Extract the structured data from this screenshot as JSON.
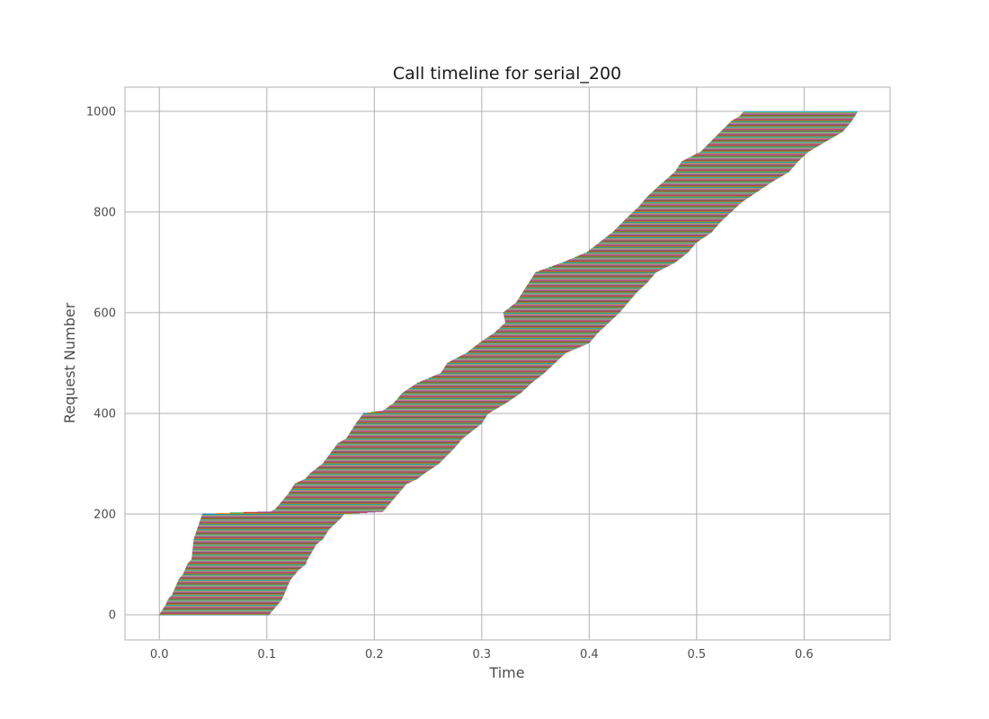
{
  "chart_data": {
    "type": "bar",
    "orientation": "horizontal",
    "title": "Call timeline for serial_200",
    "xlabel": "Time",
    "ylabel": "Request Number",
    "xlim": [
      -0.032,
      0.68
    ],
    "ylim": [
      -50,
      1048
    ],
    "xticks": [
      0.0,
      0.1,
      0.2,
      0.3,
      0.4,
      0.5,
      0.6
    ],
    "xtick_labels": [
      "0.0",
      "0.1",
      "0.2",
      "0.3",
      "0.4",
      "0.5",
      "0.6"
    ],
    "yticks": [
      0,
      200,
      400,
      600,
      800,
      1000
    ],
    "ytick_labels": [
      "0",
      "200",
      "400",
      "600",
      "800",
      "1000"
    ],
    "grid": true,
    "legend": "none",
    "n_requests": 1000,
    "request_start": [
      [
        0,
        0.0
      ],
      [
        10,
        0.003
      ],
      [
        20,
        0.006
      ],
      [
        30,
        0.008
      ],
      [
        40,
        0.012
      ],
      [
        50,
        0.014
      ],
      [
        60,
        0.016
      ],
      [
        70,
        0.018
      ],
      [
        80,
        0.022
      ],
      [
        90,
        0.024
      ],
      [
        100,
        0.026
      ],
      [
        110,
        0.03
      ],
      [
        150,
        0.032
      ],
      [
        200,
        0.04
      ],
      [
        205,
        0.104
      ],
      [
        210,
        0.108
      ],
      [
        220,
        0.112
      ],
      [
        240,
        0.12
      ],
      [
        260,
        0.126
      ],
      [
        270,
        0.136
      ],
      [
        280,
        0.14
      ],
      [
        300,
        0.152
      ],
      [
        340,
        0.166
      ],
      [
        350,
        0.174
      ],
      [
        380,
        0.183
      ],
      [
        400,
        0.19
      ],
      [
        405,
        0.208
      ],
      [
        420,
        0.218
      ],
      [
        440,
        0.226
      ],
      [
        460,
        0.24
      ],
      [
        480,
        0.262
      ],
      [
        500,
        0.268
      ],
      [
        520,
        0.286
      ],
      [
        540,
        0.298
      ],
      [
        560,
        0.312
      ],
      [
        580,
        0.322
      ],
      [
        600,
        0.32
      ],
      [
        620,
        0.332
      ],
      [
        660,
        0.344
      ],
      [
        680,
        0.35
      ],
      [
        700,
        0.376
      ],
      [
        720,
        0.398
      ],
      [
        740,
        0.41
      ],
      [
        760,
        0.422
      ],
      [
        790,
        0.436
      ],
      [
        810,
        0.446
      ],
      [
        830,
        0.454
      ],
      [
        850,
        0.464
      ],
      [
        880,
        0.48
      ],
      [
        900,
        0.486
      ],
      [
        920,
        0.504
      ],
      [
        950,
        0.518
      ],
      [
        980,
        0.532
      ],
      [
        990,
        0.54
      ],
      [
        1000,
        0.544
      ]
    ],
    "request_end": [
      [
        0,
        0.102
      ],
      [
        10,
        0.106
      ],
      [
        20,
        0.11
      ],
      [
        30,
        0.114
      ],
      [
        40,
        0.116
      ],
      [
        50,
        0.118
      ],
      [
        60,
        0.12
      ],
      [
        70,
        0.122
      ],
      [
        80,
        0.126
      ],
      [
        90,
        0.13
      ],
      [
        100,
        0.136
      ],
      [
        110,
        0.138
      ],
      [
        140,
        0.146
      ],
      [
        150,
        0.152
      ],
      [
        170,
        0.158
      ],
      [
        190,
        0.168
      ],
      [
        200,
        0.172
      ],
      [
        205,
        0.208
      ],
      [
        220,
        0.214
      ],
      [
        240,
        0.222
      ],
      [
        260,
        0.23
      ],
      [
        270,
        0.24
      ],
      [
        280,
        0.246
      ],
      [
        300,
        0.26
      ],
      [
        330,
        0.274
      ],
      [
        350,
        0.282
      ],
      [
        380,
        0.3
      ],
      [
        400,
        0.306
      ],
      [
        420,
        0.322
      ],
      [
        440,
        0.336
      ],
      [
        460,
        0.346
      ],
      [
        480,
        0.358
      ],
      [
        500,
        0.368
      ],
      [
        520,
        0.378
      ],
      [
        540,
        0.4
      ],
      [
        560,
        0.408
      ],
      [
        580,
        0.418
      ],
      [
        600,
        0.428
      ],
      [
        620,
        0.436
      ],
      [
        640,
        0.444
      ],
      [
        660,
        0.454
      ],
      [
        680,
        0.462
      ],
      [
        700,
        0.48
      ],
      [
        720,
        0.492
      ],
      [
        740,
        0.5
      ],
      [
        760,
        0.514
      ],
      [
        780,
        0.522
      ],
      [
        800,
        0.532
      ],
      [
        820,
        0.542
      ],
      [
        840,
        0.556
      ],
      [
        860,
        0.57
      ],
      [
        880,
        0.586
      ],
      [
        900,
        0.594
      ],
      [
        920,
        0.604
      ],
      [
        940,
        0.62
      ],
      [
        960,
        0.636
      ],
      [
        980,
        0.644
      ],
      [
        1000,
        0.65
      ]
    ],
    "series_colors": [
      "#1f77b4",
      "#ff7f0e",
      "#2ca02c",
      "#d62728",
      "#9467bd",
      "#8c564b",
      "#e377c2",
      "#7f7f7f",
      "#bcbd22",
      "#17becf"
    ]
  }
}
